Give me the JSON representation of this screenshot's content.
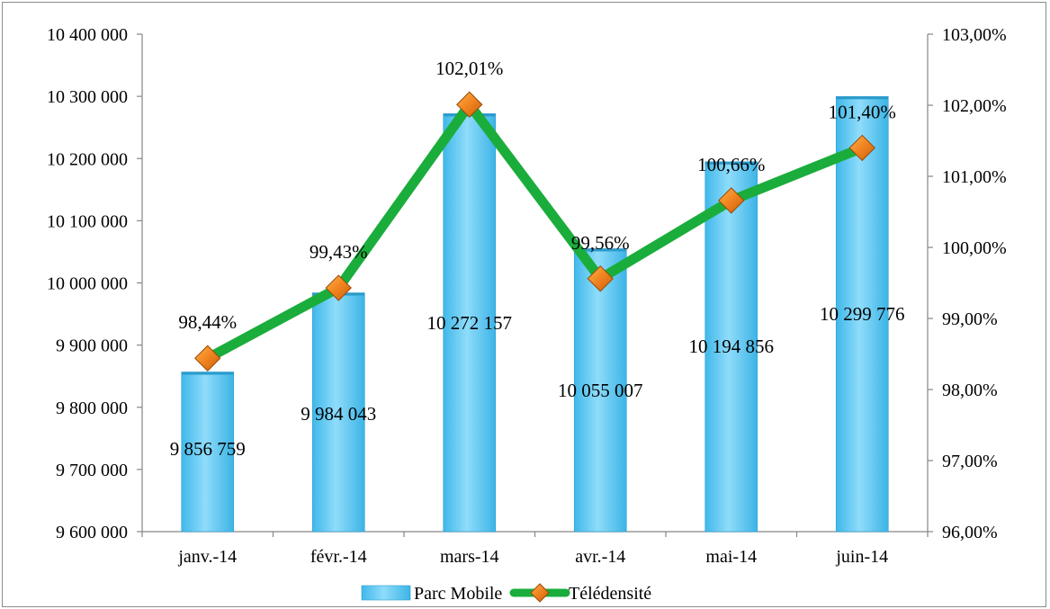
{
  "chart_data": {
    "type": "bar",
    "categories": [
      "janv.-14",
      "févr.-14",
      "mars-14",
      "avr.-14",
      "mai-14",
      "juin-14"
    ],
    "series": [
      {
        "name": "Parc Mobile",
        "type": "bar",
        "axis": "left",
        "values": [
          9856759,
          9984043,
          10272157,
          10055007,
          10194856,
          10299776
        ],
        "labels": [
          "9 856 759",
          "9 984 043",
          "10 272 157",
          "10 055 007",
          "10 194 856",
          "10 299 776"
        ],
        "color": "#5ecbf2"
      },
      {
        "name": "Télédensité",
        "type": "line",
        "axis": "right",
        "values": [
          98.44,
          99.43,
          102.01,
          99.56,
          100.66,
          101.4
        ],
        "labels": [
          "98,44%",
          "99,43%",
          "102,01%",
          "99,56%",
          "100,66%",
          "101,40%"
        ],
        "color": "#1aad3c",
        "marker_color": "#f08220"
      }
    ],
    "y_left": {
      "ylim": [
        9600000,
        10400000
      ],
      "ticks": [
        9600000,
        9700000,
        9800000,
        9900000,
        10000000,
        10100000,
        10200000,
        10300000,
        10400000
      ],
      "tick_labels": [
        "9 600 000",
        "9 700 000",
        "9 800 000",
        "9 900 000",
        "10 000 000",
        "10 100 000",
        "10 200 000",
        "10 300 000",
        "10 400 000"
      ]
    },
    "y_right": {
      "ylim": [
        96,
        103
      ],
      "ticks": [
        96,
        97,
        98,
        99,
        100,
        101,
        102,
        103
      ],
      "tick_labels": [
        "96,00%",
        "97,00%",
        "98,00%",
        "99,00%",
        "100,00%",
        "101,00%",
        "102,00%",
        "103,00%"
      ]
    },
    "grid": false,
    "legend_position": "bottom"
  }
}
